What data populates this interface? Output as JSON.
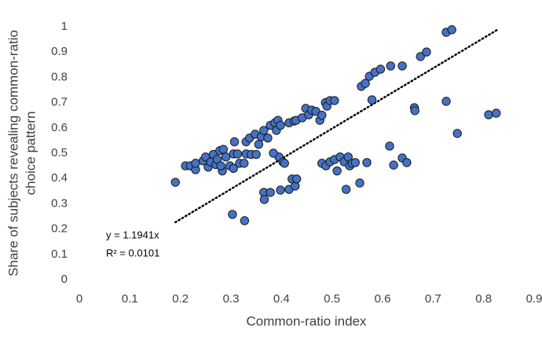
{
  "chart_data": {
    "type": "scatter",
    "xlabel": "Common-ratio index",
    "ylabel": [
      "Share of subjects revealing common-ratio",
      "choice pattern"
    ],
    "color": "#4472c4",
    "xlim": [
      0,
      0.9
    ],
    "xticks": [
      0,
      0.1,
      0.2,
      0.3,
      0.4,
      0.5,
      0.6,
      0.7,
      0.8,
      0.9
    ],
    "ylim": [
      0,
      1
    ],
    "yticks": [
      0,
      0.1,
      0.2,
      0.3,
      0.4,
      0.5,
      0.6,
      0.7,
      0.8,
      0.9,
      1
    ],
    "grid": false,
    "x": [
      0.19,
      0.21,
      0.22,
      0.23,
      0.23,
      0.245,
      0.25,
      0.255,
      0.26,
      0.265,
      0.27,
      0.273,
      0.278,
      0.283,
      0.285,
      0.28,
      0.29,
      0.298,
      0.305,
      0.307,
      0.305,
      0.313,
      0.317,
      0.326,
      0.33,
      0.33,
      0.337,
      0.34,
      0.348,
      0.35,
      0.355,
      0.36,
      0.365,
      0.373,
      0.378,
      0.387,
      0.39,
      0.393,
      0.398,
      0.395,
      0.403,
      0.384,
      0.415,
      0.425,
      0.429,
      0.441,
      0.448,
      0.454,
      0.46,
      0.468,
      0.476,
      0.48,
      0.487,
      0.49,
      0.496,
      0.505,
      0.303,
      0.327,
      0.365,
      0.366,
      0.378,
      0.398,
      0.415,
      0.421,
      0.427,
      0.43,
      0.406,
      0.48,
      0.488,
      0.496,
      0.505,
      0.51,
      0.516,
      0.524,
      0.532,
      0.535,
      0.54,
      0.546,
      0.528,
      0.555,
      0.569,
      0.614,
      0.622,
      0.639,
      0.648,
      0.558,
      0.566,
      0.574,
      0.585,
      0.596,
      0.616,
      0.639,
      0.675,
      0.687,
      0.726,
      0.737,
      0.579,
      0.663,
      0.664,
      0.726,
      0.748,
      0.81,
      0.825
    ],
    "values": [
      0.385,
      0.45,
      0.45,
      0.435,
      0.46,
      0.47,
      0.485,
      0.445,
      0.465,
      0.495,
      0.455,
      0.475,
      0.51,
      0.43,
      0.515,
      0.45,
      0.485,
      0.45,
      0.497,
      0.545,
      0.44,
      0.497,
      0.46,
      0.46,
      0.497,
      0.545,
      0.56,
      0.495,
      0.575,
      0.495,
      0.535,
      0.565,
      0.59,
      0.56,
      0.61,
      0.62,
      0.59,
      0.63,
      0.61,
      0.485,
      0.465,
      0.5,
      0.62,
      0.627,
      0.63,
      0.64,
      0.677,
      0.652,
      0.67,
      0.665,
      0.63,
      0.65,
      0.7,
      0.686,
      0.708,
      0.708,
      0.258,
      0.233,
      0.345,
      0.317,
      0.345,
      0.354,
      0.357,
      0.398,
      0.37,
      0.398,
      0.46,
      0.46,
      0.45,
      0.466,
      0.475,
      0.43,
      0.485,
      0.466,
      0.485,
      0.45,
      0.46,
      0.463,
      0.357,
      0.382,
      0.463,
      0.528,
      0.453,
      0.481,
      0.463,
      0.764,
      0.776,
      0.804,
      0.82,
      0.832,
      0.845,
      0.845,
      0.882,
      0.9,
      0.978,
      0.988,
      0.711,
      0.68,
      0.668,
      0.705,
      0.578,
      0.652,
      0.658
    ],
    "trendline": {
      "slope": 1.1941,
      "x": [
        0.19,
        0.83
      ],
      "label": "y = 1.1941x",
      "r2_label": "R² = 0.0101"
    }
  }
}
